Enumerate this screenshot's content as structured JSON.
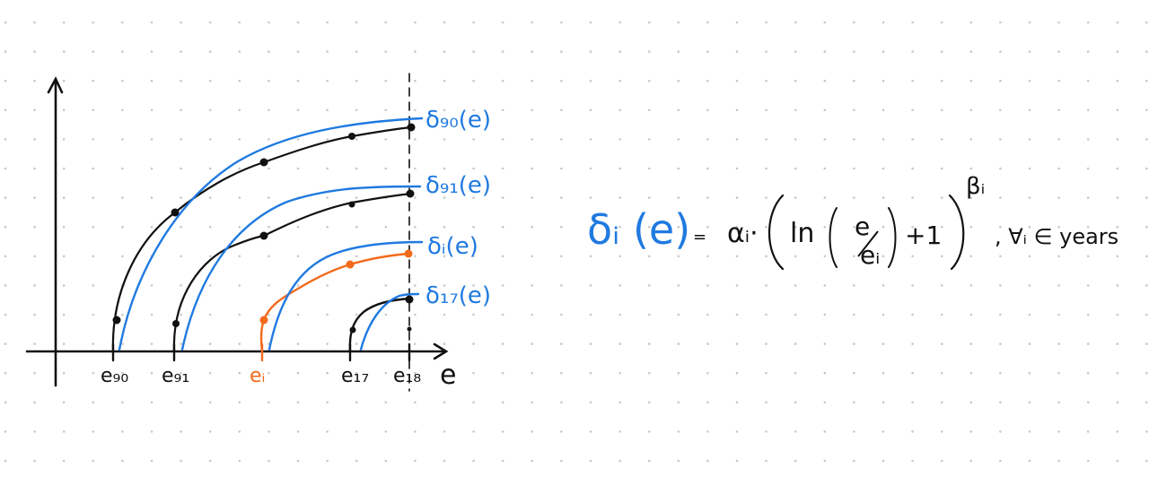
{
  "colors": {
    "background": "#ffffff",
    "grid_dot": "#c8c8c8",
    "ink_black": "#111111",
    "ink_blue": "#1f7ae0",
    "ink_orange": "#f26a1b"
  },
  "axes": {
    "x_label": "e",
    "x_ticks": [
      "e₉₀",
      "e₉₁",
      "eᵢ",
      "e₁₇",
      "e₁₈"
    ]
  },
  "curve_labels": [
    "δ₉₀(e)",
    "δ₉₁(e)",
    "δᵢ(e)",
    "δ₁₇(e)"
  ],
  "formula": {
    "lhs": "δᵢ (e)",
    "equals": "=",
    "alpha": "αᵢ·",
    "ln": "ln",
    "frac_top": "e",
    "frac_bottom": "eᵢ",
    "plus_one": "+1",
    "exponent": "βᵢ",
    "quantifier": ", ∀ᵢ ∈ years"
  }
}
